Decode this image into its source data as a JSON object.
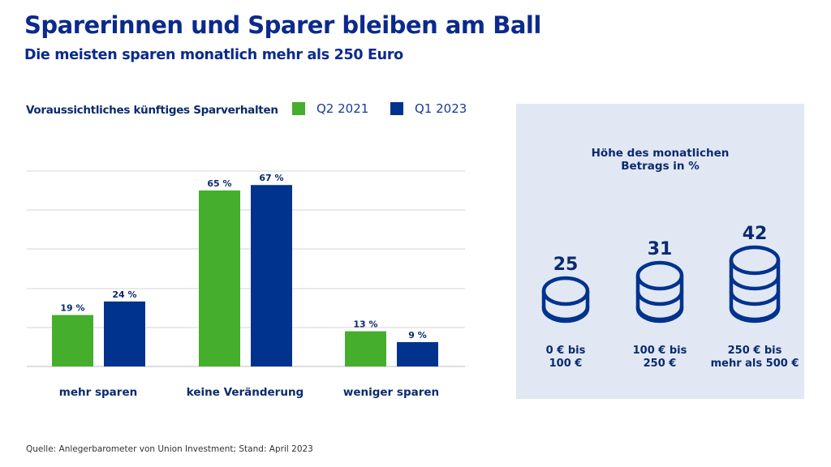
{
  "header": {
    "title": "Sparerinnen und Sparer bleiben am Ball",
    "subtitle": "Die meisten sparen monatlich mehr als 250 Euro"
  },
  "colors": {
    "q2_2021": "#45ae2c",
    "q1_2023": "#00338d",
    "text": "#0b2a6e",
    "panel_bg": "#e1e8f3",
    "grid": "#d4d4d4"
  },
  "chart_data": [
    {
      "type": "bar",
      "title": "Voraussichtliches künftiges Sparverhalten",
      "categories": [
        "mehr sparen",
        "keine Veränderung",
        "weniger sparen"
      ],
      "series": [
        {
          "name": "Q2 2021",
          "values": [
            19,
            65,
            13
          ],
          "labels": [
            "19 %",
            "65 %",
            "13 %"
          ]
        },
        {
          "name": "Q1 2023",
          "values": [
            24,
            67,
            9
          ],
          "labels": [
            "24 %",
            "67 %",
            "9 %"
          ]
        }
      ],
      "unit": "%",
      "ylim": [
        0,
        75
      ],
      "grid": true,
      "legend": "top"
    },
    {
      "type": "pictogram",
      "title": "Höhe des monatlichen Betrags in %",
      "categories": [
        "0 € bis 100 €",
        "100 € bis 250 €",
        "250 € bis mehr als 500 €"
      ],
      "values": [
        25,
        31,
        42
      ],
      "coins": [
        2,
        3,
        4
      ]
    }
  ],
  "legend": {
    "heading": "Voraussichtliches künftiges Sparverhalten",
    "items": [
      {
        "label": "Q2 2021"
      },
      {
        "label": "Q1 2023"
      }
    ]
  },
  "panel": {
    "title_line1": "Höhe des monatlichen",
    "title_line2": "Betrags in %",
    "stacks": [
      {
        "value": "25",
        "range_line1": "0 € bis",
        "range_line2": "100 €"
      },
      {
        "value": "31",
        "range_line1": "100 € bis",
        "range_line2": "250 €"
      },
      {
        "value": "42",
        "range_line1": "250 € bis",
        "range_line2": "mehr als 500 €"
      }
    ]
  },
  "source": "Quelle: Anlegerbarometer von Union Investment; Stand: April 2023"
}
